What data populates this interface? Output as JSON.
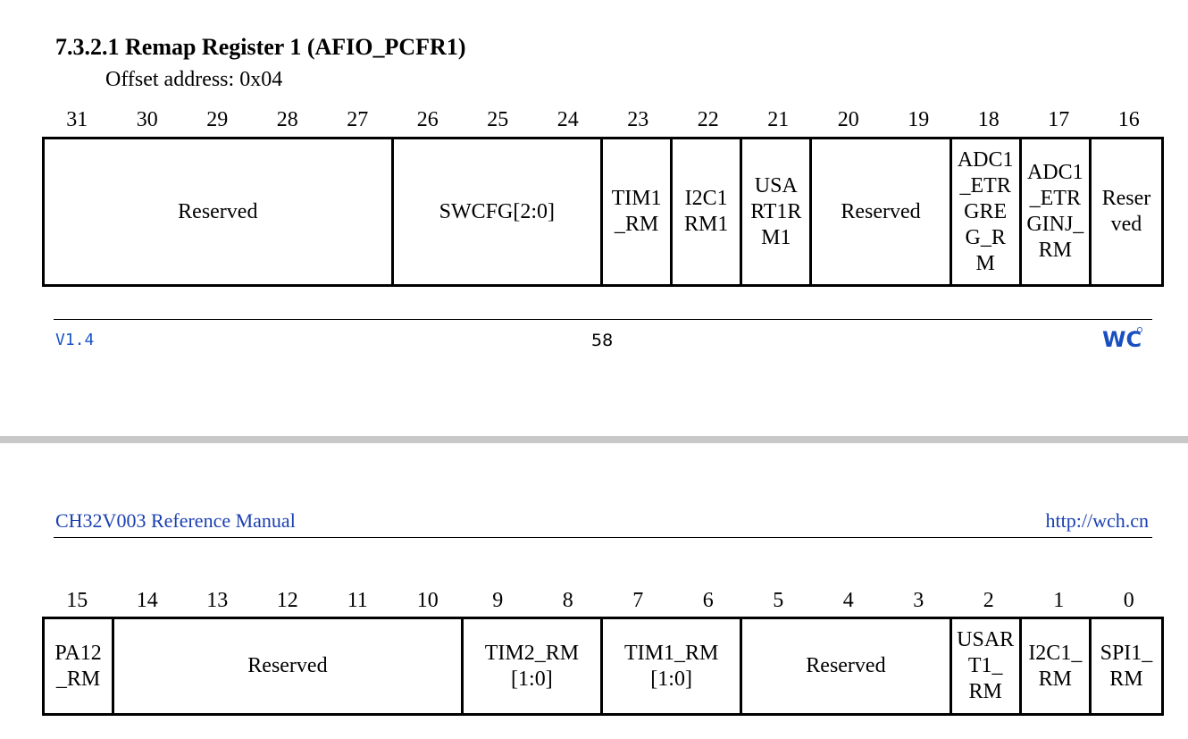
{
  "section": {
    "title": "7.3.2.1 Remap Register 1 (AFIO_PCFR1)",
    "offset": "Offset address: 0x04"
  },
  "upper_bits": [
    "31",
    "30",
    "29",
    "28",
    "27",
    "26",
    "25",
    "24",
    "23",
    "22",
    "21",
    "20",
    "19",
    "18",
    "17",
    "16"
  ],
  "upper_fields": [
    {
      "label": "Reserved",
      "span": 5
    },
    {
      "label": "SWCFG[2:0]",
      "span": 3
    },
    {
      "label": "TIM1\n_RM",
      "span": 1
    },
    {
      "label": "I2C1\nRM1",
      "span": 1
    },
    {
      "label": "USA\nRT1R\nM1",
      "span": 1
    },
    {
      "label": "Reserved",
      "span": 2
    },
    {
      "label": "ADC1\n_ETR\nGRE\nG_R\nM",
      "span": 1
    },
    {
      "label": "ADC1\n_ETR\nGINJ_\nRM",
      "span": 1
    },
    {
      "label": "Reser\nved",
      "span": 1
    }
  ],
  "footer": {
    "version": "V1.4",
    "page_number": "58",
    "logo_text": "WCH"
  },
  "header": {
    "manual": "CH32V003  Reference Manual",
    "url": "http://wch.cn"
  },
  "lower_bits": [
    "15",
    "14",
    "13",
    "12",
    "11",
    "10",
    "9",
    "8",
    "7",
    "6",
    "5",
    "4",
    "3",
    "2",
    "1",
    "0"
  ],
  "lower_fields": [
    {
      "label": "PA12\n_RM",
      "span": 1
    },
    {
      "label": "Reserved",
      "span": 5
    },
    {
      "label": "TIM2_RM\n[1:0]",
      "span": 2
    },
    {
      "label": "TIM1_RM\n[1:0]",
      "span": 2
    },
    {
      "label": "Reserved",
      "span": 3
    },
    {
      "label": "USAR\nT1_\nRM",
      "span": 1
    },
    {
      "label": "I2C1_\nRM",
      "span": 1
    },
    {
      "label": "SPI1_\nRM",
      "span": 1
    }
  ]
}
